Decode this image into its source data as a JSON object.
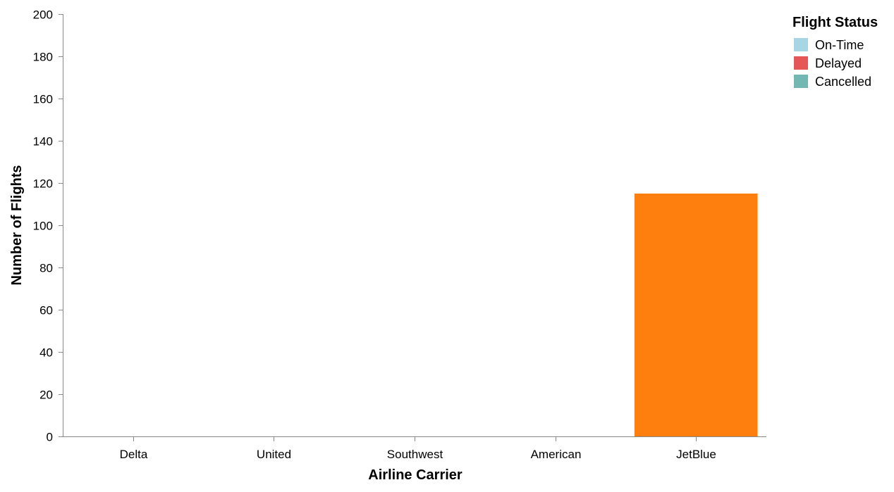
{
  "chart_data": {
    "type": "bar",
    "categories": [
      "Delta",
      "United",
      "Southwest",
      "American",
      "JetBlue"
    ],
    "values": [
      0,
      0,
      0,
      0,
      115
    ],
    "bar_colors": [
      "#ff7f0e",
      "#ff7f0e",
      "#ff7f0e",
      "#ff7f0e",
      "#ff7f0e"
    ],
    "title": "",
    "xlabel": "Airline Carrier",
    "ylabel": "Number of Flights",
    "ylim": [
      0,
      200
    ],
    "yticks": [
      0,
      20,
      40,
      60,
      80,
      100,
      120,
      140,
      160,
      180,
      200
    ],
    "grid": false,
    "legend": {
      "title": "Flight Status",
      "placement": "top-right",
      "entries": [
        {
          "label": "On-Time",
          "color": "#a6d6e4"
        },
        {
          "label": "Delayed",
          "color": "#e45756"
        },
        {
          "label": "Cancelled",
          "color": "#72b7b2"
        }
      ]
    }
  }
}
